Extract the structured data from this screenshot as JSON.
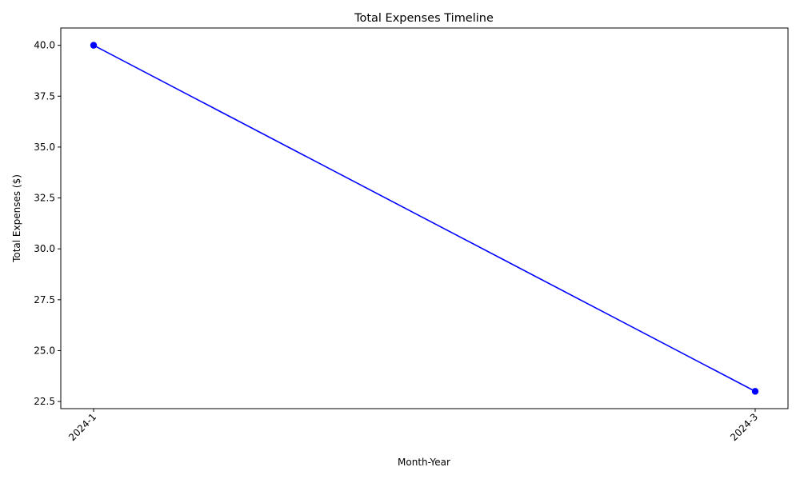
{
  "chart_data": {
    "type": "line",
    "title": "Total Expenses Timeline",
    "xlabel": "Month-Year",
    "ylabel": "Total Expenses ($)",
    "categories": [
      "2024-1",
      "2024-3"
    ],
    "series": [
      {
        "values": [
          40.0,
          23.0
        ],
        "color": "#0000ff",
        "marker": "circle"
      }
    ],
    "ylim": [
      22.15,
      40.85
    ],
    "y_ticks": [
      22.5,
      25.0,
      27.5,
      30.0,
      32.5,
      35.0,
      37.5,
      40.0
    ],
    "y_tick_labels": [
      "22.5",
      "25.0",
      "27.5",
      "30.0",
      "32.5",
      "35.0",
      "37.5",
      "40.0"
    ],
    "x_tick_rotation_deg": 45,
    "grid": false,
    "legend": "none"
  }
}
